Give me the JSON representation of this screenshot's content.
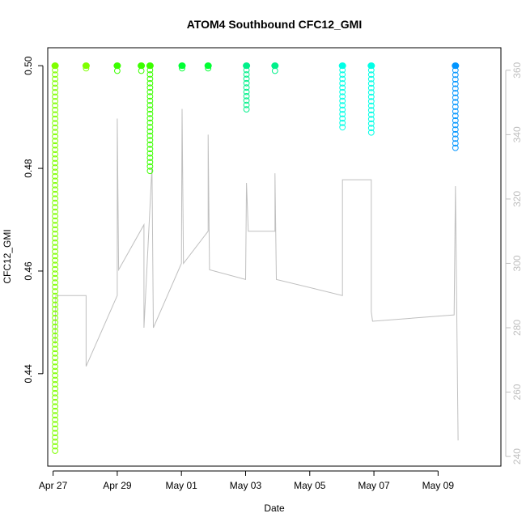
{
  "chart_data": {
    "type": "scatter",
    "title": "ATOM4 Southbound CFC12_GMI",
    "xlabel": "Date",
    "ylabel": "CFC12_GMI",
    "y2label": "",
    "x_ticks": [
      "Apr 27",
      "Apr 29",
      "May 01",
      "May 03",
      "May 05",
      "May 07",
      "May 09"
    ],
    "y_ticks": [
      "0.44",
      "0.46",
      "0.48",
      "0.50"
    ],
    "y_tick_values": [
      0.44,
      0.46,
      0.48,
      0.5
    ],
    "y2_ticks": [
      "240",
      "260",
      "280",
      "300",
      "320",
      "340",
      "360"
    ],
    "y2_tick_values": [
      240,
      260,
      280,
      300,
      320,
      340,
      360
    ],
    "xlim": [
      "2017-04-26T20:00",
      "2017-05-10T23:00"
    ],
    "ylim": [
      0.422,
      0.5035
    ],
    "y2lim": [
      237,
      367
    ],
    "grid": false,
    "series": [
      {
        "kind": "points",
        "color": "#7fff00",
        "points": [
          {
            "day": "2017-04-27T01:30",
            "ymin": 0.425,
            "ymax": 0.5
          },
          {
            "day": "2017-04-28T00:40",
            "ymin": 0.4995,
            "ymax": 0.5
          }
        ]
      },
      {
        "kind": "points",
        "color": "#3cff00",
        "points": [
          {
            "day": "2017-04-29T00:00",
            "ymin": 0.499,
            "ymax": 0.5
          },
          {
            "day": "2017-04-29T18:00",
            "ymin": 0.499,
            "ymax": 0.5
          },
          {
            "day": "2017-04-30T00:30",
            "ymin": 0.4795,
            "ymax": 0.5
          }
        ]
      },
      {
        "kind": "points",
        "color": "#00ff33",
        "points": [
          {
            "day": "2017-05-01T00:30",
            "ymin": 0.4995,
            "ymax": 0.5
          },
          {
            "day": "2017-05-01T20:00",
            "ymin": 0.4995,
            "ymax": 0.5
          }
        ]
      },
      {
        "kind": "points",
        "color": "#00f08a",
        "points": [
          {
            "day": "2017-05-03T00:40",
            "ymin": 0.4915,
            "ymax": 0.5
          },
          {
            "day": "2017-05-03T22:00",
            "ymin": 0.499,
            "ymax": 0.5
          }
        ]
      },
      {
        "kind": "points",
        "color": "#00ffe6",
        "points": [
          {
            "day": "2017-05-06T00:30",
            "ymin": 0.488,
            "ymax": 0.5
          },
          {
            "day": "2017-05-06T22:00",
            "ymin": 0.487,
            "ymax": 0.5
          }
        ]
      },
      {
        "kind": "points",
        "color": "#0095ff",
        "points": [
          {
            "day": "2017-05-09T13:00",
            "ymin": 0.484,
            "ymax": 0.5
          }
        ]
      },
      {
        "kind": "line",
        "axis": "right",
        "color": "#bfbfbf",
        "points": [
          {
            "day": "2017-04-27T01:30",
            "v": 275
          },
          {
            "day": "2017-04-27T02:00",
            "v": 290
          },
          {
            "day": "2017-04-28T00:40",
            "v": 290
          },
          {
            "day": "2017-04-28T00:40",
            "v": 268
          },
          {
            "day": "2017-04-29T00:00",
            "v": 290
          },
          {
            "day": "2017-04-29T00:00",
            "v": 345
          },
          {
            "day": "2017-04-29T01:00",
            "v": 298
          },
          {
            "day": "2017-04-29T20:00",
            "v": 312
          },
          {
            "day": "2017-04-29T20:00",
            "v": 280
          },
          {
            "day": "2017-04-30T02:00",
            "v": 330
          },
          {
            "day": "2017-04-30T03:00",
            "v": 280
          },
          {
            "day": "2017-05-01T00:00",
            "v": 300
          },
          {
            "day": "2017-05-01T00:30",
            "v": 348
          },
          {
            "day": "2017-05-01T01:30",
            "v": 300
          },
          {
            "day": "2017-05-01T20:00",
            "v": 310
          },
          {
            "day": "2017-05-01T20:00",
            "v": 340
          },
          {
            "day": "2017-05-01T21:00",
            "v": 298
          },
          {
            "day": "2017-05-03T00:00",
            "v": 295
          },
          {
            "day": "2017-05-03T00:40",
            "v": 325
          },
          {
            "day": "2017-05-03T02:00",
            "v": 310
          },
          {
            "day": "2017-05-03T22:00",
            "v": 310
          },
          {
            "day": "2017-05-03T22:00",
            "v": 328
          },
          {
            "day": "2017-05-03T23:00",
            "v": 295
          },
          {
            "day": "2017-05-06T00:30",
            "v": 290
          },
          {
            "day": "2017-05-06T00:30",
            "v": 326
          },
          {
            "day": "2017-05-06T22:00",
            "v": 326
          },
          {
            "day": "2017-05-06T22:00",
            "v": 285
          },
          {
            "day": "2017-05-06T23:00",
            "v": 282
          },
          {
            "day": "2017-05-09T12:00",
            "v": 284
          },
          {
            "day": "2017-05-09T13:00",
            "v": 324
          },
          {
            "day": "2017-05-09T15:00",
            "v": 245
          }
        ]
      }
    ]
  }
}
